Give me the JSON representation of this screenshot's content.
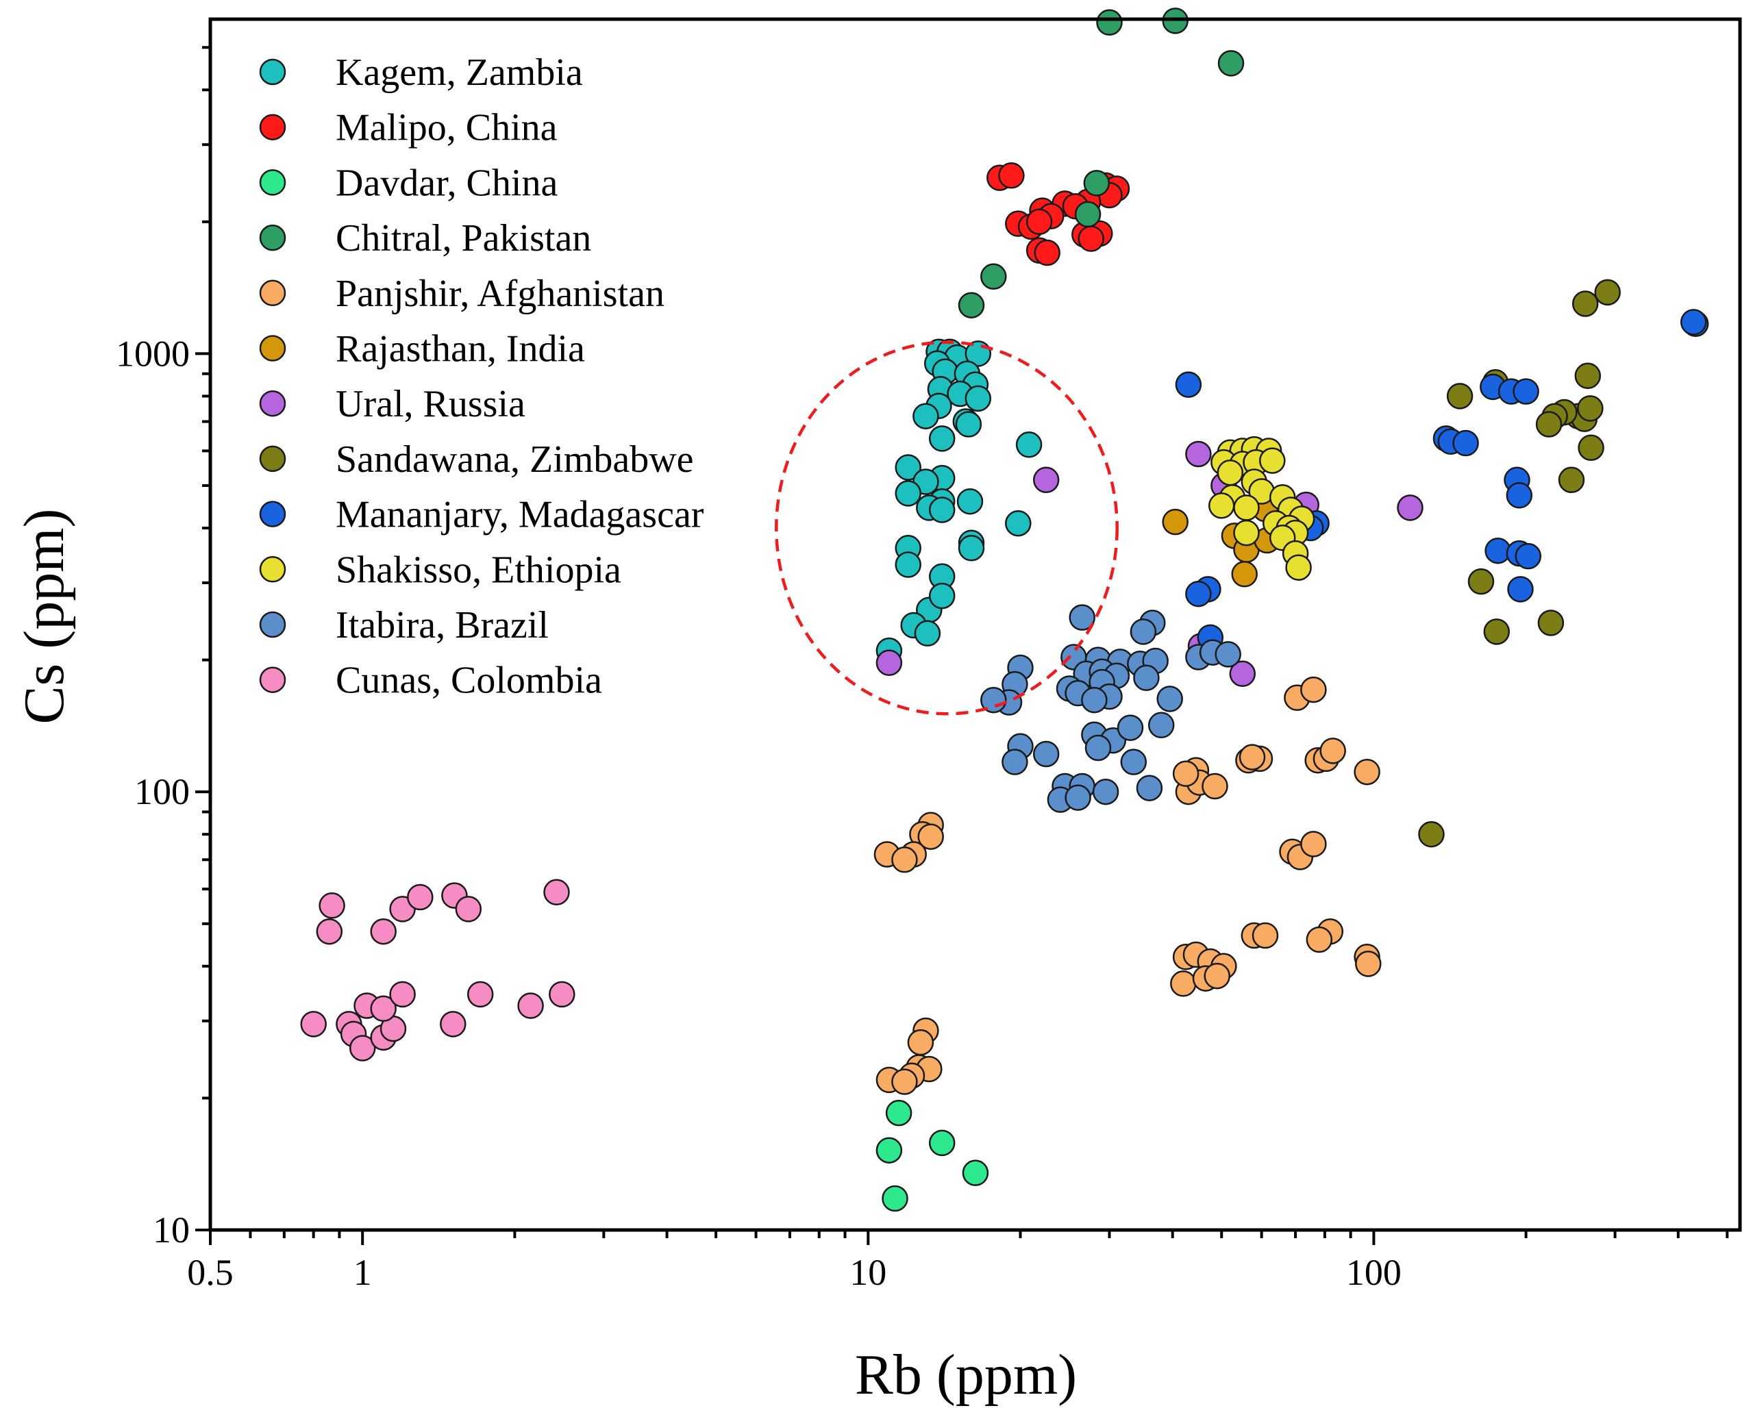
{
  "chart_data": {
    "type": "scatter",
    "xlabel": "Rb (ppm)",
    "ylabel": "Cs (ppm)",
    "xscale": "log",
    "yscale": "log",
    "xlim": [
      0.5,
      530
    ],
    "ylim": [
      10,
      5800
    ],
    "xticks": [
      {
        "v": 0.5,
        "label": "0.5"
      },
      {
        "v": 1,
        "label": "1"
      },
      {
        "v": 10,
        "label": "10"
      },
      {
        "v": 100,
        "label": "100"
      }
    ],
    "yticks": [
      {
        "v": 10,
        "label": "10"
      },
      {
        "v": 100,
        "label": "100"
      },
      {
        "v": 1000,
        "label": "1000"
      }
    ],
    "legend_position": "top-left",
    "annotation": "red dashed ellipse around the Kagem, Zambia cluster",
    "series": [
      {
        "name": "Kagem, Zambia",
        "color": "#1ebfbf",
        "points": [
          [
            13.8,
            1010
          ],
          [
            14.5,
            1010
          ],
          [
            15.0,
            980
          ],
          [
            16.5,
            1000
          ],
          [
            13.7,
            950
          ],
          [
            14.2,
            910
          ],
          [
            15.7,
            900
          ],
          [
            16.3,
            850
          ],
          [
            13.9,
            830
          ],
          [
            15.2,
            810
          ],
          [
            16.5,
            790
          ],
          [
            13.8,
            760
          ],
          [
            13.0,
            720
          ],
          [
            15.6,
            700
          ],
          [
            15.8,
            690
          ],
          [
            14.0,
            640
          ],
          [
            20.8,
            620
          ],
          [
            12.0,
            550
          ],
          [
            14.0,
            520
          ],
          [
            13.0,
            510
          ],
          [
            12.0,
            480
          ],
          [
            14.0,
            460
          ],
          [
            15.9,
            460
          ],
          [
            13.2,
            445
          ],
          [
            14.0,
            440
          ],
          [
            19.8,
            410
          ],
          [
            16.0,
            370
          ],
          [
            12.0,
            360
          ],
          [
            16.0,
            360
          ],
          [
            12.0,
            330
          ],
          [
            14.0,
            310
          ],
          [
            13.2,
            260
          ],
          [
            14.0,
            280
          ],
          [
            12.3,
            240
          ],
          [
            13.1,
            230
          ],
          [
            11.0,
            210
          ]
        ]
      },
      {
        "name": "Malipo, China",
        "color": "#ff1a1a",
        "points": [
          [
            18.2,
            2520
          ],
          [
            19.2,
            2550
          ],
          [
            29.5,
            2420
          ],
          [
            31.0,
            2380
          ],
          [
            30.0,
            2300
          ],
          [
            27.2,
            2220
          ],
          [
            24.5,
            2200
          ],
          [
            25.7,
            2170
          ],
          [
            22.1,
            2120
          ],
          [
            23.0,
            2060
          ],
          [
            19.8,
            1980
          ],
          [
            21.0,
            1950
          ],
          [
            21.8,
            2000
          ],
          [
            26.8,
            1870
          ],
          [
            28.7,
            1880
          ],
          [
            27.6,
            1830
          ],
          [
            21.8,
            1720
          ],
          [
            22.6,
            1700
          ]
        ]
      },
      {
        "name": "Davdar, China",
        "color": "#2ee88e",
        "points": [
          [
            11.5,
            18.5
          ],
          [
            11.0,
            15.2
          ],
          [
            14.0,
            15.8
          ],
          [
            16.3,
            13.5
          ],
          [
            11.3,
            11.8
          ]
        ]
      },
      {
        "name": "Chitral, Pakistan",
        "color": "#2e9e64",
        "points": [
          [
            30.0,
            5700
          ],
          [
            40.5,
            5750
          ],
          [
            52.2,
            4600
          ],
          [
            28.3,
            2450
          ],
          [
            27.2,
            2080
          ],
          [
            17.7,
            1500
          ],
          [
            16.0,
            1290
          ]
        ]
      },
      {
        "name": "Panjshir, Afghanistan",
        "color": "#f7ab63",
        "points": [
          [
            13.3,
            84
          ],
          [
            12.8,
            80
          ],
          [
            13.3,
            79
          ],
          [
            10.9,
            72
          ],
          [
            12.3,
            72
          ],
          [
            11.8,
            70
          ],
          [
            59.5,
            119
          ],
          [
            56.5,
            118
          ],
          [
            57.5,
            120
          ],
          [
            77.5,
            118
          ],
          [
            80.5,
            119
          ],
          [
            83.0,
            124
          ],
          [
            70.5,
            164
          ],
          [
            76.0,
            171
          ],
          [
            43.0,
            100
          ],
          [
            44.5,
            112
          ],
          [
            45.2,
            105
          ],
          [
            48.5,
            103
          ],
          [
            42.5,
            110
          ],
          [
            97.0,
            111
          ],
          [
            69.0,
            73
          ],
          [
            71.5,
            71
          ],
          [
            76.0,
            76
          ],
          [
            58.0,
            47
          ],
          [
            61.0,
            47
          ],
          [
            82.0,
            48
          ],
          [
            78.0,
            46
          ],
          [
            42.5,
            42
          ],
          [
            44.5,
            42.5
          ],
          [
            47.5,
            41
          ],
          [
            50.5,
            40
          ],
          [
            42.0,
            36.5
          ],
          [
            46.5,
            37.5
          ],
          [
            49.0,
            38
          ],
          [
            97.0,
            42
          ],
          [
            97.5,
            40.5
          ],
          [
            13.0,
            28.5
          ],
          [
            12.7,
            26.8
          ],
          [
            12.6,
            23.5
          ],
          [
            13.2,
            23.3
          ],
          [
            12.2,
            22.5
          ],
          [
            11.0,
            22.0
          ],
          [
            11.8,
            21.8
          ]
        ]
      },
      {
        "name": "Rajasthan, India",
        "color": "#d4960a",
        "points": [
          [
            40.5,
            413
          ],
          [
            61.0,
            442
          ],
          [
            53.0,
            384
          ],
          [
            56.0,
            357
          ],
          [
            61.5,
            375
          ],
          [
            55.5,
            314
          ]
        ]
      },
      {
        "name": "Ural, Russia",
        "color": "#b566df",
        "points": [
          [
            22.5,
            515
          ],
          [
            45.0,
            590
          ],
          [
            50.5,
            500
          ],
          [
            55.5,
            555
          ],
          [
            73.5,
            452
          ],
          [
            118.0,
            445
          ],
          [
            45.5,
            215
          ],
          [
            55.0,
            186
          ],
          [
            11.0,
            197
          ]
        ]
      },
      {
        "name": "Sandawana, Zimbabwe",
        "color": "#7d7d16",
        "points": [
          [
            148.0,
            800
          ],
          [
            174.0,
            860
          ],
          [
            262.0,
            1300
          ],
          [
            290.0,
            1380
          ],
          [
            265.0,
            890
          ],
          [
            254.0,
            720
          ],
          [
            261.0,
            710
          ],
          [
            268.0,
            750
          ],
          [
            238.0,
            735
          ],
          [
            228.0,
            720
          ],
          [
            222.0,
            690
          ],
          [
            269.0,
            610
          ],
          [
            246.0,
            515
          ],
          [
            163.0,
            302
          ],
          [
            175.0,
            232
          ],
          [
            224.0,
            243
          ],
          [
            130.0,
            80
          ]
        ]
      },
      {
        "name": "Mananjary, Madagascar",
        "color": "#1a63e0",
        "points": [
          [
            433.0,
            1170
          ],
          [
            429.0,
            1180
          ],
          [
            172.0,
            840
          ],
          [
            187.0,
            820
          ],
          [
            200.0,
            820
          ],
          [
            43.0,
            850
          ],
          [
            139.0,
            640
          ],
          [
            142.0,
            630
          ],
          [
            152.0,
            625
          ],
          [
            192.0,
            515
          ],
          [
            194.0,
            475
          ],
          [
            77.0,
            410
          ],
          [
            75.0,
            400
          ],
          [
            176.0,
            355
          ],
          [
            194.0,
            350
          ],
          [
            202.0,
            345
          ],
          [
            47.0,
            290
          ],
          [
            45.0,
            283
          ],
          [
            195.0,
            290
          ],
          [
            47.5,
            225
          ]
        ]
      },
      {
        "name": "Shakisso, Ethiopia",
        "color": "#e8e030",
        "points": [
          [
            52.0,
            595
          ],
          [
            55.0,
            600
          ],
          [
            58.0,
            605
          ],
          [
            62.0,
            600
          ],
          [
            50.5,
            565
          ],
          [
            55.0,
            560
          ],
          [
            58.5,
            565
          ],
          [
            63.0,
            570
          ],
          [
            52.0,
            535
          ],
          [
            58.0,
            510
          ],
          [
            52.5,
            470
          ],
          [
            60.0,
            485
          ],
          [
            66.0,
            470
          ],
          [
            50.0,
            450
          ],
          [
            56.0,
            445
          ],
          [
            68.5,
            440
          ],
          [
            72.0,
            420
          ],
          [
            64.0,
            410
          ],
          [
            68.0,
            400
          ],
          [
            70.0,
            390
          ],
          [
            66.0,
            380
          ],
          [
            56.0,
            390
          ],
          [
            70.0,
            350
          ],
          [
            71.0,
            325
          ]
        ]
      },
      {
        "name": "Itabira, Brazil",
        "color": "#5a8fcb",
        "points": [
          [
            26.5,
            250
          ],
          [
            36.5,
            243
          ],
          [
            35.0,
            232
          ],
          [
            25.5,
            203
          ],
          [
            28.5,
            200
          ],
          [
            31.5,
            198
          ],
          [
            34.5,
            196
          ],
          [
            37.0,
            199
          ],
          [
            20.0,
            192
          ],
          [
            27.0,
            186
          ],
          [
            29.0,
            188
          ],
          [
            31.0,
            184
          ],
          [
            35.5,
            182
          ],
          [
            29.0,
            178
          ],
          [
            19.5,
            176
          ],
          [
            25.0,
            172
          ],
          [
            26.0,
            168
          ],
          [
            30.0,
            165
          ],
          [
            28.0,
            162
          ],
          [
            19.0,
            160
          ],
          [
            17.7,
            162
          ],
          [
            45.0,
            203
          ],
          [
            48.0,
            208
          ],
          [
            51.5,
            206
          ],
          [
            39.5,
            163
          ],
          [
            20.0,
            127
          ],
          [
            22.5,
            122
          ],
          [
            28.0,
            135
          ],
          [
            30.5,
            131
          ],
          [
            33.0,
            140
          ],
          [
            28.5,
            126
          ],
          [
            38.0,
            142
          ],
          [
            19.5,
            117
          ],
          [
            33.5,
            117
          ],
          [
            24.5,
            103
          ],
          [
            26.5,
            103
          ],
          [
            29.5,
            100
          ],
          [
            24.0,
            96
          ],
          [
            26.0,
            97
          ],
          [
            36.0,
            102
          ]
        ]
      },
      {
        "name": "Cunas, Colombia",
        "color": "#f58dc4",
        "points": [
          [
            0.87,
            55
          ],
          [
            1.2,
            54
          ],
          [
            1.3,
            57.5
          ],
          [
            1.52,
            58
          ],
          [
            1.62,
            54
          ],
          [
            2.42,
            59
          ],
          [
            0.86,
            48
          ],
          [
            1.1,
            48
          ],
          [
            0.8,
            29.5
          ],
          [
            0.94,
            29.5
          ],
          [
            0.96,
            28
          ],
          [
            1.0,
            26
          ],
          [
            1.1,
            27.5
          ],
          [
            1.15,
            28.8
          ],
          [
            1.51,
            29.5
          ],
          [
            1.02,
            32.5
          ],
          [
            1.1,
            32
          ],
          [
            1.2,
            34.5
          ],
          [
            1.71,
            34.5
          ],
          [
            2.15,
            32.5
          ],
          [
            2.48,
            34.5
          ]
        ]
      }
    ],
    "ellipse": {
      "cx": 14.3,
      "cy": 400,
      "rx_decades": 0.337,
      "ry_decades": 0.424
    }
  }
}
